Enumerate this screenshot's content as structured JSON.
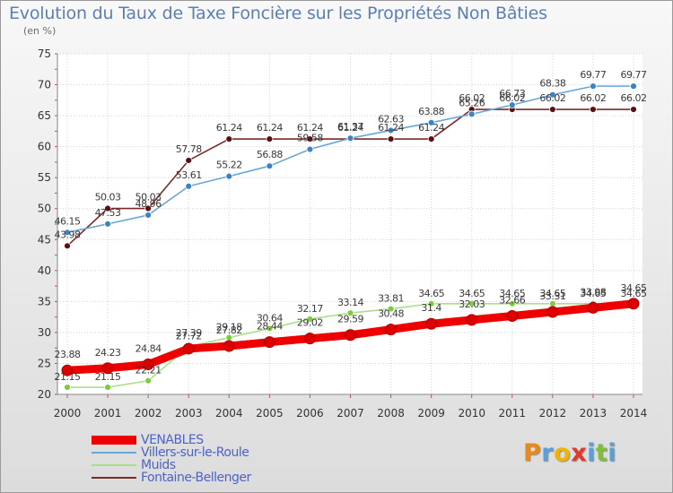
{
  "chart_data": {
    "type": "line",
    "title": "Evolution du Taux de Taxe Foncière sur les Propriétés Non Bâties",
    "ylabel": "(en %)",
    "xlabel": "",
    "ylim": [
      20,
      75
    ],
    "yticks": [
      "20",
      "25",
      "30",
      "35",
      "40",
      "45",
      "50",
      "55",
      "60",
      "65",
      "70",
      "75"
    ],
    "categories": [
      "2000",
      "2001",
      "2002",
      "2003",
      "2004",
      "2005",
      "2006",
      "2007",
      "2008",
      "2009",
      "2010",
      "2011",
      "2012",
      "2013",
      "2014"
    ],
    "series": [
      {
        "name": "VENABLES",
        "color": "#ee0000",
        "marker": "#dd0000",
        "values": [
          23.88,
          24.23,
          24.84,
          27.39,
          27.82,
          28.44,
          29.02,
          29.59,
          30.48,
          31.4,
          32.03,
          32.66,
          33.31,
          33.98,
          34.65
        ],
        "labels": [
          "23.88",
          "24.23",
          "24.84",
          "27.39",
          "27.82",
          "28.44",
          "29.02",
          "29.59",
          "30.48",
          "31.4",
          "32.03",
          "32.66",
          "33.31",
          "33.98",
          "34.65"
        ]
      },
      {
        "name": "Villers-sur-le-Roule",
        "color": "#6aa6d6",
        "marker": "#3b84c4",
        "values": [
          46.15,
          47.53,
          48.96,
          53.61,
          55.22,
          56.88,
          59.58,
          61.37,
          62.63,
          63.88,
          65.26,
          66.73,
          68.38,
          69.77,
          69.77
        ],
        "labels": [
          "46.15",
          "47.53",
          "48.96",
          "53.61",
          "55.22",
          "56.88",
          "59.58",
          "61.37",
          "62.63",
          "63.88",
          "65.26",
          "66.73",
          "68.38",
          "69.77",
          "69.77"
        ]
      },
      {
        "name": "Muids",
        "color": "#a8e088",
        "marker": "#7ccc3c",
        "values": [
          21.15,
          21.15,
          22.21,
          27.72,
          29.18,
          30.64,
          32.17,
          33.14,
          33.81,
          34.65,
          34.65,
          34.65,
          34.65,
          34.65,
          34.65
        ],
        "labels": [
          "21.15",
          "21.15",
          "22.21",
          "27.72",
          "29.18",
          "30.64",
          "32.17",
          "33.14",
          "33.81",
          "34.65",
          "34.65",
          "34.65",
          "34.65",
          "34.65",
          "34.65"
        ]
      },
      {
        "name": "Fontaine-Bellenger",
        "color": "#7a2a2a",
        "marker": "#5a1010",
        "values": [
          43.98,
          50.03,
          50.03,
          57.78,
          61.24,
          61.24,
          61.24,
          61.24,
          61.24,
          61.24,
          66.02,
          66.02,
          66.02,
          66.02,
          66.02
        ],
        "labels": [
          "43.98",
          "50.03",
          "50.03",
          "57.78",
          "61.24",
          "61.24",
          "61.24",
          "61.24",
          "61.24",
          "61.24",
          "66.02",
          "66.02",
          "66.02",
          "66.02",
          "66.02"
        ]
      }
    ],
    "legend_position": "bottom-left"
  },
  "logo": {
    "letters": [
      "P",
      "r",
      "o",
      "x",
      "i",
      "t",
      "i"
    ],
    "colors": [
      "#e88a1a",
      "#5aa0d8",
      "#f0b400",
      "#e03a2a",
      "#5aa0d8",
      "#7cc03c",
      "#5aa0d8"
    ]
  }
}
